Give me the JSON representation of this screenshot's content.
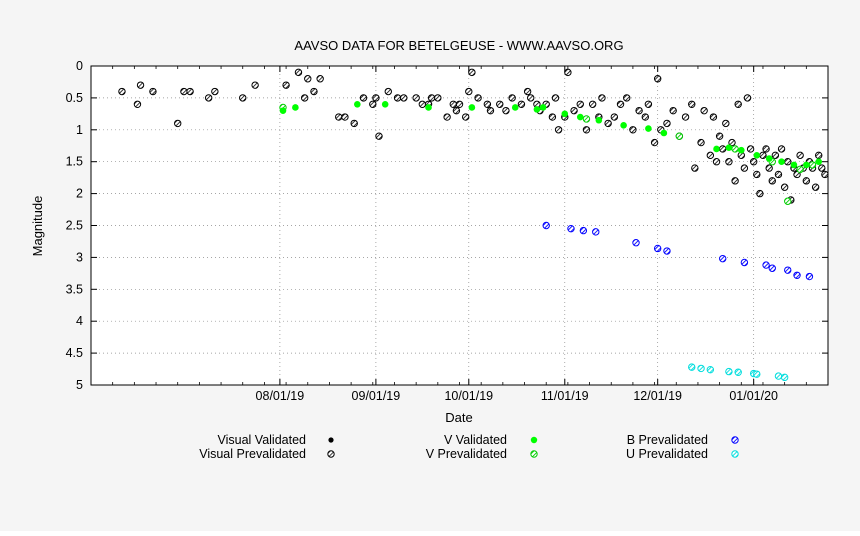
{
  "colors": {
    "background": "#f5f5f5",
    "visual": "#000000",
    "v_band": "#00ff00",
    "b_band": "#0000ff",
    "u_band": "#00ffff",
    "grid": "#888888"
  },
  "chart_data": {
    "type": "scatter",
    "title": "AAVSO DATA FOR BETELGEUSE - WWW.AAVSO.ORG",
    "xlabel": "Date",
    "ylabel": "Magnitude",
    "x_axis_kind": "date",
    "xlim": [
      "2019-06-01",
      "2020-01-25"
    ],
    "ylim": [
      0,
      5
    ],
    "y_inverted": true,
    "grid": true,
    "legend_position": "bottom",
    "x_ticks": [
      "08/01/19",
      "09/01/19",
      "10/01/19",
      "11/01/19",
      "12/01/19",
      "01/01/20"
    ],
    "y_ticks": [
      "0",
      "0.5",
      "1",
      "1.5",
      "2",
      "2.5",
      "3",
      "3.5",
      "4",
      "4.5",
      "5"
    ],
    "legend": [
      {
        "label": "Visual Validated",
        "series": "visual_validated"
      },
      {
        "label": "Visual Prevalidated",
        "series": "visual_prevalidated"
      },
      {
        "label": "V Validated",
        "series": "v_validated"
      },
      {
        "label": "V Prevalidated",
        "series": "v_prevalidated"
      },
      {
        "label": "B Prevalidated",
        "series": "b_prevalidated"
      },
      {
        "label": "U Prevalidated",
        "series": "u_prevalidated"
      }
    ],
    "series": [
      {
        "name": "Visual Validated",
        "key": "visual_validated",
        "color": "#000000",
        "marker": "filled",
        "points": []
      },
      {
        "name": "Visual Prevalidated",
        "key": "visual_prevalidated",
        "color": "#000000",
        "marker": "hatched",
        "points": [
          [
            "2019-06-11",
            0.4
          ],
          [
            "2019-06-16",
            0.6
          ],
          [
            "2019-06-17",
            0.3
          ],
          [
            "2019-06-21",
            0.4
          ],
          [
            "2019-06-29",
            0.9
          ],
          [
            "2019-07-01",
            0.4
          ],
          [
            "2019-07-03",
            0.4
          ],
          [
            "2019-07-09",
            0.5
          ],
          [
            "2019-07-11",
            0.4
          ],
          [
            "2019-07-20",
            0.5
          ],
          [
            "2019-07-24",
            0.3
          ],
          [
            "2019-08-03",
            0.3
          ],
          [
            "2019-08-07",
            0.1
          ],
          [
            "2019-08-09",
            0.5
          ],
          [
            "2019-08-10",
            0.2
          ],
          [
            "2019-08-12",
            0.4
          ],
          [
            "2019-08-14",
            0.2
          ],
          [
            "2019-08-20",
            0.8
          ],
          [
            "2019-08-22",
            0.8
          ],
          [
            "2019-08-25",
            0.9
          ],
          [
            "2019-08-28",
            0.5
          ],
          [
            "2019-08-31",
            0.6
          ],
          [
            "2019-09-01",
            0.5
          ],
          [
            "2019-09-02",
            1.1
          ],
          [
            "2019-09-05",
            0.4
          ],
          [
            "2019-09-08",
            0.5
          ],
          [
            "2019-09-10",
            0.5
          ],
          [
            "2019-09-14",
            0.5
          ],
          [
            "2019-09-16",
            0.6
          ],
          [
            "2019-09-18",
            0.6
          ],
          [
            "2019-09-19",
            0.5
          ],
          [
            "2019-09-21",
            0.5
          ],
          [
            "2019-09-24",
            0.8
          ],
          [
            "2019-09-26",
            0.6
          ],
          [
            "2019-09-27",
            0.7
          ],
          [
            "2019-09-28",
            0.6
          ],
          [
            "2019-09-30",
            0.8
          ],
          [
            "2019-10-01",
            0.4
          ],
          [
            "2019-10-02",
            0.1
          ],
          [
            "2019-10-04",
            0.5
          ],
          [
            "2019-10-07",
            0.6
          ],
          [
            "2019-10-08",
            0.7
          ],
          [
            "2019-10-11",
            0.6
          ],
          [
            "2019-10-13",
            0.7
          ],
          [
            "2019-10-15",
            0.5
          ],
          [
            "2019-10-18",
            0.6
          ],
          [
            "2019-10-20",
            0.4
          ],
          [
            "2019-10-21",
            0.5
          ],
          [
            "2019-10-23",
            0.6
          ],
          [
            "2019-10-24",
            0.7
          ],
          [
            "2019-10-26",
            0.6
          ],
          [
            "2019-10-28",
            0.8
          ],
          [
            "2019-10-29",
            0.5
          ],
          [
            "2019-10-30",
            1.0
          ],
          [
            "2019-11-01",
            0.8
          ],
          [
            "2019-11-02",
            0.1
          ],
          [
            "2019-11-04",
            0.7
          ],
          [
            "2019-11-06",
            0.6
          ],
          [
            "2019-11-08",
            1.0
          ],
          [
            "2019-11-10",
            0.6
          ],
          [
            "2019-11-12",
            0.8
          ],
          [
            "2019-11-13",
            0.5
          ],
          [
            "2019-11-15",
            0.9
          ],
          [
            "2019-11-17",
            0.8
          ],
          [
            "2019-11-19",
            0.6
          ],
          [
            "2019-11-21",
            0.5
          ],
          [
            "2019-11-23",
            1.0
          ],
          [
            "2019-11-25",
            0.7
          ],
          [
            "2019-11-27",
            0.8
          ],
          [
            "2019-11-28",
            0.6
          ],
          [
            "2019-11-30",
            1.2
          ],
          [
            "2019-12-01",
            0.2
          ],
          [
            "2019-12-02",
            1.0
          ],
          [
            "2019-12-04",
            0.9
          ],
          [
            "2019-12-06",
            0.7
          ],
          [
            "2019-12-08",
            1.1
          ],
          [
            "2019-12-10",
            0.8
          ],
          [
            "2019-12-12",
            0.6
          ],
          [
            "2019-12-13",
            1.6
          ],
          [
            "2019-12-15",
            1.2
          ],
          [
            "2019-12-16",
            0.7
          ],
          [
            "2019-12-18",
            1.4
          ],
          [
            "2019-12-19",
            0.8
          ],
          [
            "2019-12-20",
            1.5
          ],
          [
            "2019-12-21",
            1.1
          ],
          [
            "2019-12-22",
            1.3
          ],
          [
            "2019-12-23",
            0.9
          ],
          [
            "2019-12-24",
            1.5
          ],
          [
            "2019-12-25",
            1.2
          ],
          [
            "2019-12-26",
            1.8
          ],
          [
            "2019-12-27",
            0.6
          ],
          [
            "2019-12-28",
            1.4
          ],
          [
            "2019-12-29",
            1.6
          ],
          [
            "2019-12-30",
            0.5
          ],
          [
            "2019-12-31",
            1.3
          ],
          [
            "2020-01-01",
            1.5
          ],
          [
            "2020-01-02",
            1.7
          ],
          [
            "2020-01-03",
            2.0
          ],
          [
            "2020-01-04",
            1.4
          ],
          [
            "2020-01-05",
            1.3
          ],
          [
            "2020-01-06",
            1.6
          ],
          [
            "2020-01-07",
            1.8
          ],
          [
            "2020-01-08",
            1.4
          ],
          [
            "2020-01-09",
            1.7
          ],
          [
            "2020-01-10",
            1.3
          ],
          [
            "2020-01-11",
            1.9
          ],
          [
            "2020-01-12",
            1.5
          ],
          [
            "2020-01-13",
            2.1
          ],
          [
            "2020-01-14",
            1.6
          ],
          [
            "2020-01-15",
            1.7
          ],
          [
            "2020-01-16",
            1.4
          ],
          [
            "2020-01-17",
            1.6
          ],
          [
            "2020-01-18",
            1.8
          ],
          [
            "2020-01-19",
            1.5
          ],
          [
            "2020-01-20",
            1.6
          ],
          [
            "2020-01-21",
            1.9
          ],
          [
            "2020-01-22",
            1.4
          ],
          [
            "2020-01-23",
            1.6
          ],
          [
            "2020-01-24",
            1.7
          ]
        ]
      },
      {
        "name": "V Validated",
        "key": "v_validated",
        "color": "#00ff00",
        "marker": "filled",
        "points": [
          [
            "2019-08-02",
            0.7
          ],
          [
            "2019-08-06",
            0.65
          ],
          [
            "2019-08-26",
            0.6
          ],
          [
            "2019-09-04",
            0.6
          ],
          [
            "2019-09-18",
            0.65
          ],
          [
            "2019-10-02",
            0.65
          ],
          [
            "2019-10-16",
            0.65
          ],
          [
            "2019-10-23",
            0.68
          ],
          [
            "2019-10-25",
            0.65
          ],
          [
            "2019-11-01",
            0.75
          ],
          [
            "2019-11-06",
            0.8
          ],
          [
            "2019-11-12",
            0.85
          ],
          [
            "2019-11-20",
            0.93
          ],
          [
            "2019-11-28",
            0.98
          ],
          [
            "2019-12-03",
            1.05
          ],
          [
            "2019-12-20",
            1.3
          ],
          [
            "2019-12-24",
            1.28
          ],
          [
            "2019-12-28",
            1.32
          ],
          [
            "2020-01-02",
            1.4
          ],
          [
            "2020-01-06",
            1.45
          ],
          [
            "2020-01-10",
            1.5
          ],
          [
            "2020-01-14",
            1.55
          ],
          [
            "2020-01-18",
            1.55
          ],
          [
            "2020-01-22",
            1.5
          ]
        ]
      },
      {
        "name": "V Prevalidated",
        "key": "v_prevalidated",
        "color": "#00ff00",
        "marker": "hatched",
        "points": [
          [
            "2019-08-02",
            0.65
          ],
          [
            "2019-11-08",
            0.83
          ],
          [
            "2019-12-08",
            1.1
          ],
          [
            "2019-12-26",
            1.3
          ],
          [
            "2020-01-07",
            1.5
          ],
          [
            "2020-01-12",
            2.12
          ],
          [
            "2020-01-16",
            1.62
          ],
          [
            "2020-01-20",
            1.55
          ]
        ]
      },
      {
        "name": "B Prevalidated",
        "key": "b_prevalidated",
        "color": "#0000ff",
        "marker": "hatched",
        "points": [
          [
            "2019-10-26",
            2.5
          ],
          [
            "2019-11-03",
            2.55
          ],
          [
            "2019-11-07",
            2.58
          ],
          [
            "2019-11-11",
            2.6
          ],
          [
            "2019-11-24",
            2.77
          ],
          [
            "2019-12-01",
            2.86
          ],
          [
            "2019-12-04",
            2.9
          ],
          [
            "2019-12-22",
            3.02
          ],
          [
            "2019-12-29",
            3.08
          ],
          [
            "2020-01-05",
            3.12
          ],
          [
            "2020-01-07",
            3.17
          ],
          [
            "2020-01-12",
            3.2
          ],
          [
            "2020-01-15",
            3.28
          ],
          [
            "2020-01-19",
            3.3
          ]
        ]
      },
      {
        "name": "U Prevalidated",
        "key": "u_prevalidated",
        "color": "#00ffff",
        "marker": "hatched",
        "points": [
          [
            "2019-12-12",
            4.72
          ],
          [
            "2019-12-15",
            4.74
          ],
          [
            "2019-12-18",
            4.76
          ],
          [
            "2019-12-24",
            4.79
          ],
          [
            "2019-12-27",
            4.8
          ],
          [
            "2020-01-01",
            4.82
          ],
          [
            "2020-01-02",
            4.83
          ],
          [
            "2020-01-09",
            4.86
          ],
          [
            "2020-01-11",
            4.88
          ]
        ]
      }
    ]
  }
}
